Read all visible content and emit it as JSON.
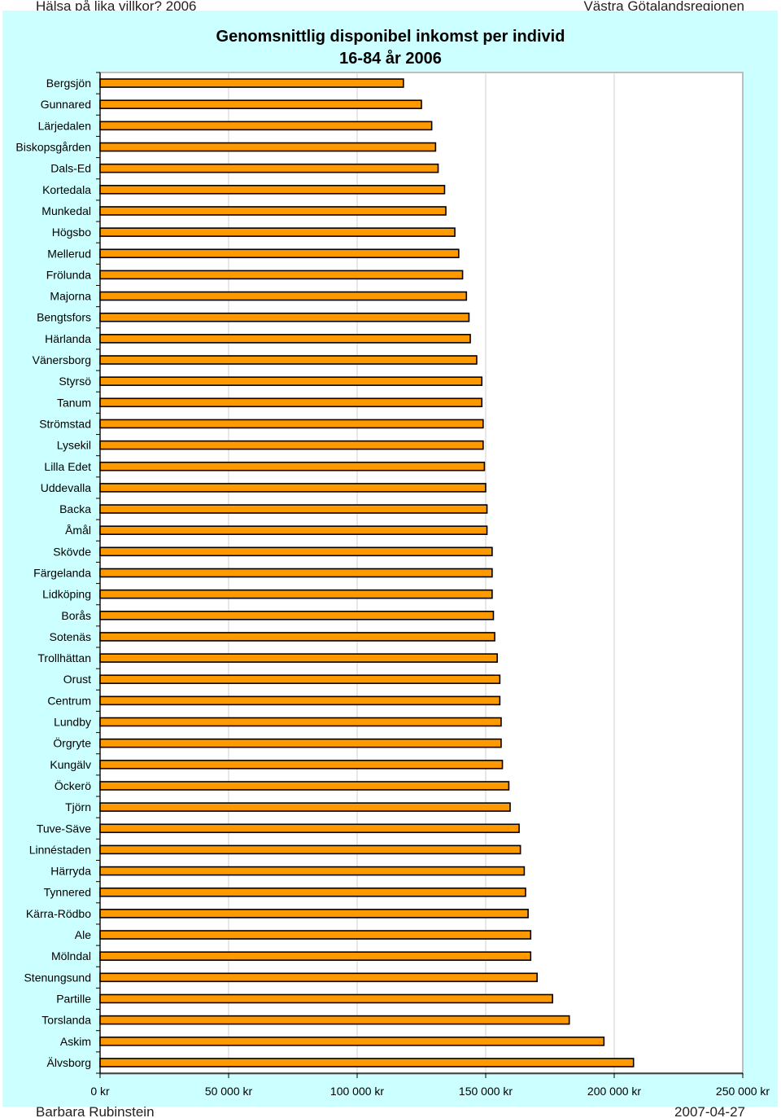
{
  "header": {
    "left": "Hälsa på lika villkor? 2006",
    "right": "Västra Götalandsregionen"
  },
  "footer": {
    "left": "Barbara Rubinstein",
    "right": "2007-04-27"
  },
  "chart_data": {
    "type": "bar",
    "orientation": "horizontal",
    "title": "Genomsnittlig disponibel inkomst per individ",
    "subtitle": "16-84 år 2006",
    "xlabel": "",
    "ylabel": "",
    "xlim": [
      0,
      250000
    ],
    "x_ticks": [
      0,
      50000,
      100000,
      150000,
      200000,
      250000
    ],
    "x_tick_labels": [
      "0 kr",
      "50 000 kr",
      "100 000 kr",
      "150 000 kr",
      "200 000 kr",
      "250 000 kr"
    ],
    "grid": true,
    "legend": "none",
    "bar_color": "#ff9900",
    "bar_edge_color": "#000000",
    "panel_color": "#ccffff",
    "categories": [
      "Bergsjön",
      "Gunnared",
      "Lärjedalen",
      "Biskopsgården",
      "Dals-Ed",
      "Kortedala",
      "Munkedal",
      "Högsbo",
      "Mellerud",
      "Frölunda",
      "Majorna",
      "Bengtsfors",
      "Härlanda",
      "Vänersborg",
      "Styrsö",
      "Tanum",
      "Strömstad",
      "Lysekil",
      "Lilla Edet",
      "Uddevalla",
      "Backa",
      "Åmål",
      "Skövde",
      "Färgelanda",
      "Lidköping",
      "Borås",
      "Sotenäs",
      "Trollhättan",
      "Orust",
      "Centrum",
      "Lundby",
      "Örgryte",
      "Kungälv",
      "Öckerö",
      "Tjörn",
      "Tuve-Säve",
      "Linnéstaden",
      "Härryda",
      "Tynnered",
      "Kärra-Rödbo",
      "Ale",
      "Mölndal",
      "Stenungsund",
      "Partille",
      "Torslanda",
      "Askim",
      "Älvsborg"
    ],
    "values": [
      118000,
      125000,
      129000,
      130500,
      131500,
      134000,
      134500,
      138000,
      139500,
      141000,
      142500,
      143500,
      144000,
      146500,
      148500,
      148500,
      149000,
      149000,
      149500,
      150000,
      150500,
      150500,
      152500,
      152500,
      152500,
      153000,
      153500,
      154500,
      155500,
      155500,
      156000,
      156000,
      156500,
      159000,
      159500,
      163000,
      163500,
      165000,
      165500,
      166500,
      167500,
      167500,
      170000,
      176000,
      182500,
      196000,
      207500
    ]
  }
}
